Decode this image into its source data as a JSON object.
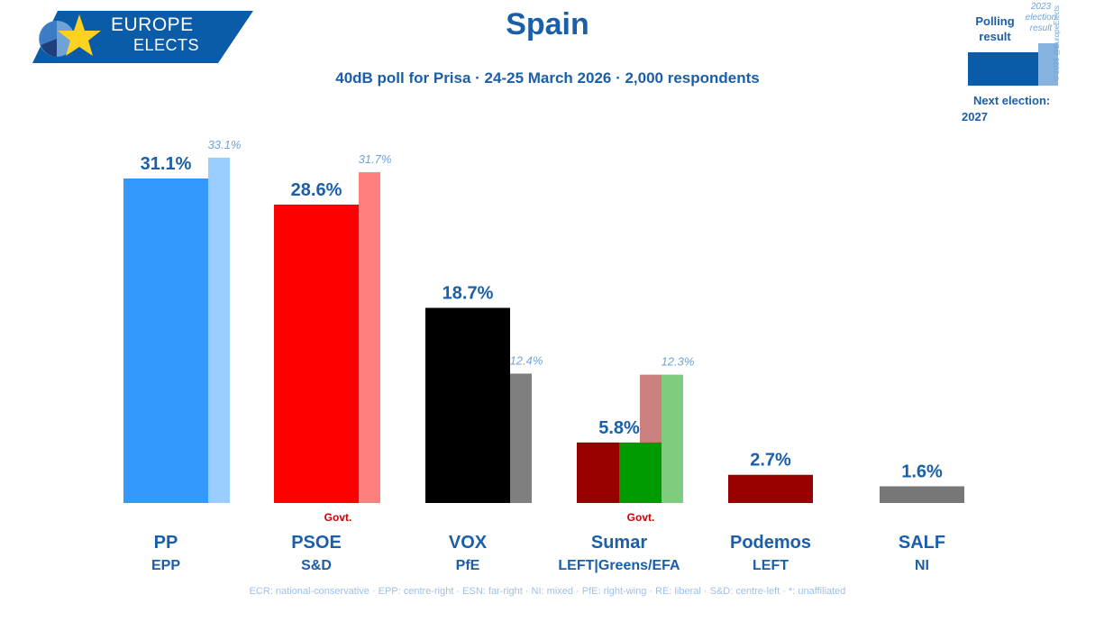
{
  "logo": {
    "line1": "EUROPE",
    "line2": "ELECTS"
  },
  "title": "Spain",
  "subtitle": "40dB poll for Prisa · 24-25 March 2026 · 2,000 respondents",
  "legend": {
    "poll_label": "Polling result",
    "prev_label": "2023 election result",
    "next_election_label": "Next election:",
    "next_election_year": "2027",
    "copyright": "© 2026 @EuropeElects"
  },
  "footer": "ECR: national-conservative · EPP: centre-right · ESN: far-right · NI: mixed · PfE: right-wing · RE: liberal · S&D: centre-left · *: unaffiliated",
  "chart_data": {
    "type": "bar",
    "categories": [
      "PP",
      "PSOE",
      "VOX",
      "Sumar",
      "Podemos",
      "SALF"
    ],
    "groups": [
      "EPP",
      "S&D",
      "PfE",
      "LEFT|Greens/EFA",
      "LEFT",
      "NI"
    ],
    "govt_marker": "Govt.",
    "govt": [
      false,
      true,
      false,
      true,
      false,
      false
    ],
    "series": [
      {
        "name": "Polling result",
        "values": [
          31.1,
          28.6,
          18.7,
          5.8,
          2.7,
          1.6
        ],
        "labels": [
          "31.1%",
          "28.6%",
          "18.7%",
          "5.8%",
          "2.7%",
          "1.6%"
        ]
      },
      {
        "name": "2023 election result",
        "values": [
          33.1,
          31.7,
          12.4,
          12.3,
          null,
          null
        ],
        "labels": [
          "33.1%",
          "31.7%",
          "12.4%",
          "12.3%",
          "",
          ""
        ]
      }
    ],
    "colors": {
      "poll": [
        "#3399ff",
        "#ff0000",
        "#000000",
        [
          "#990000",
          "#009900"
        ],
        "#990000",
        "#777777"
      ],
      "prev": [
        "#99ccff",
        "#ff7f7f",
        "#7f7f7f",
        [
          "#cc7f7f",
          "#7fcc7f"
        ],
        null,
        null
      ],
      "value_label": "#1a5fa8",
      "prev_label": "#6fa3d8",
      "govt_label": "#cc0000"
    },
    "ylim": [
      0,
      35
    ]
  }
}
